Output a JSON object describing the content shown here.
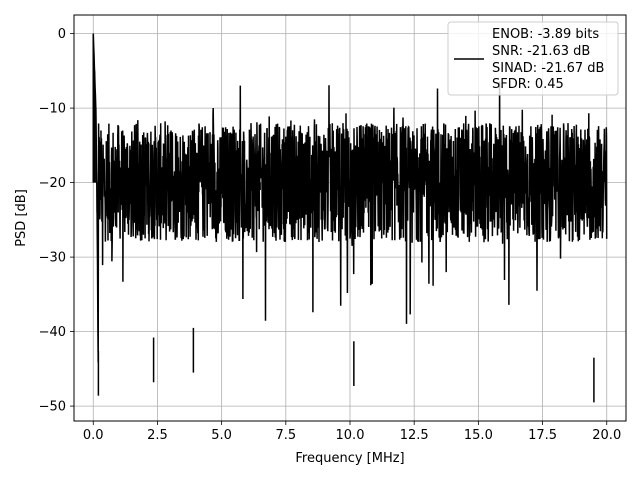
{
  "chart_data": {
    "type": "line",
    "xlabel": "Frequency [MHz]",
    "ylabel": "PSD [dB]",
    "xlim": [
      -0.75,
      20.75
    ],
    "ylim": [
      -52,
      2.5
    ],
    "xticks": [
      0.0,
      2.5,
      5.0,
      7.5,
      10.0,
      12.5,
      15.0,
      17.5,
      20.0
    ],
    "xtick_labels": [
      "0.0",
      "2.5",
      "5.0",
      "7.5",
      "10.0",
      "12.5",
      "15.0",
      "17.5",
      "20.0"
    ],
    "yticks": [
      0,
      -10,
      -20,
      -30,
      -40,
      -50
    ],
    "ytick_labels": [
      "0",
      "−10",
      "−20",
      "−30",
      "−40",
      "−50"
    ],
    "grid": true,
    "legend_position": "top-right",
    "legend_lines": [
      "ENOB: -3.89 bits",
      "SNR: -21.63 dB",
      "SINAD: -21.67 dB",
      "SFDR: 0.45"
    ],
    "series": [
      {
        "color": "#000000",
        "x": [
          0.0,
          0.05,
          0.1,
          0.15,
          0.2,
          0.3,
          0.5,
          0.75,
          1.0,
          1.25,
          1.5,
          2.0,
          2.35,
          2.5,
          3.0,
          3.5,
          3.9,
          4.5,
          5.0,
          5.5,
          6.0,
          6.5,
          6.9,
          7.5,
          8.0,
          8.5,
          9.0,
          9.5,
          10.0,
          10.15,
          10.5,
          11.0,
          11.5,
          12.0,
          12.5,
          13.0,
          13.5,
          14.0,
          14.5,
          15.0,
          15.5,
          16.0,
          16.5,
          17.0,
          17.5,
          18.0,
          18.5,
          19.0,
          19.5,
          20.0
        ],
        "y": [
          0.0,
          -5,
          -10,
          -24,
          -48.6,
          -13,
          -20,
          -22,
          -19,
          -21,
          -20,
          -22,
          -46.8,
          -19,
          -21,
          -20,
          -45.5,
          -22,
          -21,
          -20,
          -19,
          -21,
          -23,
          -20,
          -21,
          -22,
          -20,
          -21,
          -22,
          -47.3,
          -20,
          -21,
          -22,
          -20,
          -21,
          -19,
          -22,
          -20,
          -21,
          -20,
          -22,
          -19,
          -21,
          -20,
          -22,
          -21,
          -20,
          -22,
          -49.5,
          -20
        ]
      }
    ]
  }
}
